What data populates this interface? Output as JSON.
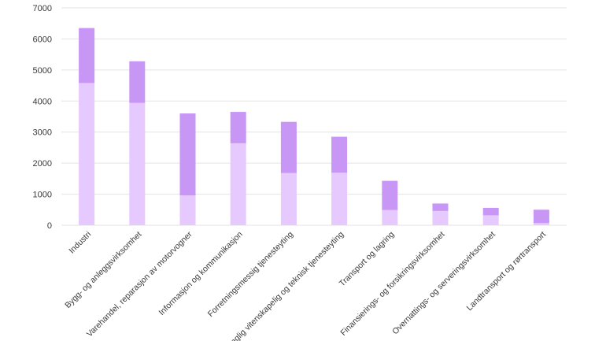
{
  "chart_data": {
    "type": "bar",
    "stacked": true,
    "categories": [
      "Industri",
      "Bygg- og anleggsvirksomhet",
      "Varehandel, reparasjon av motorvogner",
      "Informasjon og kommunikasjon",
      "Forretningsmessig tjenesteyting",
      "Faglig vitenskapelig og teknisk tjenesteyting",
      "Transport og lagring",
      "Finansierings- og forsikringsvirksomhet",
      "Overnattings- og serveringsvirksomhet",
      "Landtransport og rørtransport"
    ],
    "series": [
      {
        "color": "#e6c9ff",
        "values": [
          4580,
          3940,
          960,
          2640,
          1680,
          1690,
          490,
          460,
          320,
          70
        ]
      },
      {
        "color": "#c896f5",
        "values": [
          1770,
          1340,
          2640,
          1010,
          1650,
          1160,
          940,
          240,
          240,
          430
        ]
      }
    ],
    "ylim": [
      0,
      7000
    ],
    "yticks": [
      0,
      1000,
      2000,
      3000,
      4000,
      5000,
      6000,
      7000
    ],
    "grid": true,
    "title": "",
    "xlabel": "",
    "ylabel": ""
  }
}
